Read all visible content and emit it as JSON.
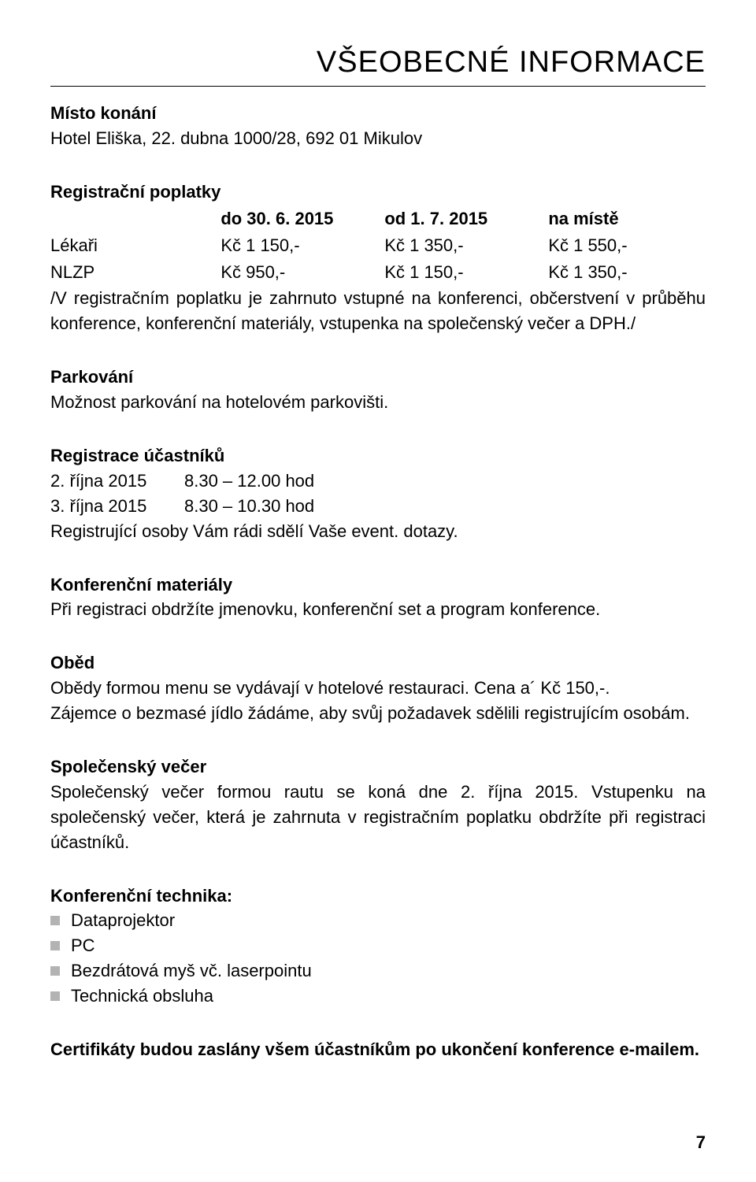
{
  "page": {
    "title": "VŠEOBECNÉ INFORMACE",
    "number": "7"
  },
  "venue": {
    "heading": "Místo konání",
    "text": "Hotel Eliška, 22. dubna 1000/28, 692 01 Mikulov"
  },
  "fees": {
    "heading": "Registrační poplatky",
    "header": {
      "col2": "do 30. 6. 2015",
      "col3": "od 1. 7. 2015",
      "col4": "na místě"
    },
    "rows": [
      {
        "label": "Lékaři",
        "col2": "Kč 1 150,-",
        "col3": "Kč 1 350,-",
        "col4": "Kč 1 550,-"
      },
      {
        "label": "NLZP",
        "col2": "Kč   950,-",
        "col3": "Kč 1 150,-",
        "col4": "Kč 1 350,-"
      }
    ],
    "note": "/V registračním poplatku je zahrnuto vstupné na konferenci, občerstvení v průběhu konference, konferenční materiály, vstupenka na společenský večer a DPH./"
  },
  "parking": {
    "heading": "Parkování",
    "text": "Možnost parkování na hotelovém parkovišti."
  },
  "registration": {
    "heading": "Registrace účastníků",
    "rows": [
      {
        "date": "2. října 2015",
        "time": "8.30 – 12.00 hod"
      },
      {
        "date": "3. října 2015",
        "time": "8.30 – 10.30 hod"
      }
    ],
    "note": "Registrující osoby Vám rádi sdělí Vaše event. dotazy."
  },
  "materials": {
    "heading": "Konferenční materiály",
    "text": "Při registraci obdržíte jmenovku, konferenční set a program konference."
  },
  "lunch": {
    "heading": "Oběd",
    "line1": "Obědy formou menu se vydávají v hotelové restauraci. Cena a´ Kč 150,-.",
    "line2": "Zájemce o bezmasé jídlo žádáme, aby svůj požadavek sdělili registrujícím osobám."
  },
  "social": {
    "heading": "Společenský večer",
    "text": "Společenský večer formou rautu se koná dne 2. října 2015. Vstupenku na společenský večer, která je zahrnuta v registračním poplatku obdržíte při registraci účastníků."
  },
  "tech": {
    "heading": "Konferenční technika:",
    "items": [
      "Dataprojektor",
      "PC",
      "Bezdrátová myš vč. laserpointu",
      "Technická obsluha"
    ]
  },
  "cert": {
    "text": "Certifikáty budou zaslány všem účastníkům po ukončení konference e-mailem."
  }
}
